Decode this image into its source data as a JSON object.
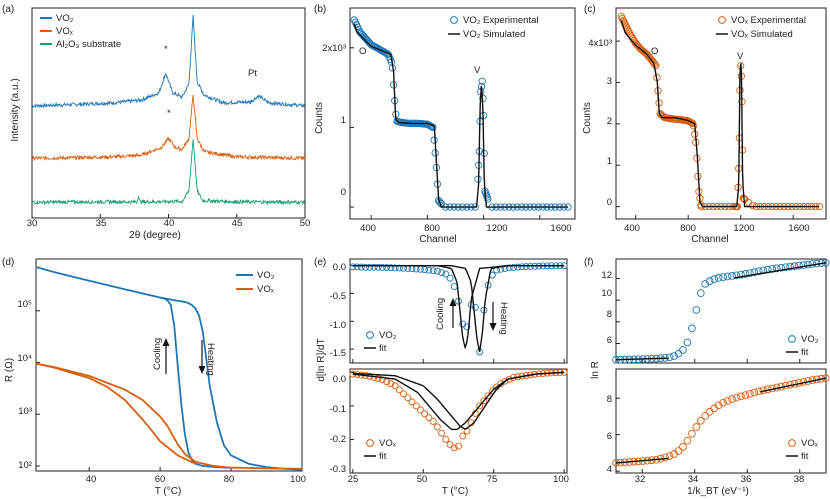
{
  "colors": {
    "vo2": "#1f77b4",
    "vox": "#d95f0e",
    "al2o3": "#1b9e77",
    "fit": "#111111"
  },
  "chart_data": [
    {
      "id": "a",
      "panel_label": "(a)",
      "type": "line",
      "title": "",
      "xlabel": "2θ (degree)",
      "ylabel": "Intensity (a.u.)",
      "xlim": [
        30,
        50
      ],
      "xticks": [
        "30",
        "35",
        "40",
        "45",
        "50"
      ],
      "series": [
        {
          "name": "VO2",
          "label": "VO₂",
          "color_key": "vo2",
          "offset": 2.0,
          "x": [
            30,
            33,
            36,
            38,
            39.3,
            39.8,
            40.3,
            41,
            41.5,
            41.8,
            42.1,
            42.6,
            44,
            46,
            46.6,
            47.3,
            50
          ],
          "y": [
            0.25,
            0.28,
            0.32,
            0.38,
            0.55,
            1.0,
            0.55,
            0.45,
            0.75,
            2.3,
            0.8,
            0.5,
            0.32,
            0.34,
            0.48,
            0.32,
            0.25
          ]
        },
        {
          "name": "VOx",
          "label": "VOₓ",
          "color_key": "vox",
          "offset": 1.0,
          "x": [
            30,
            33,
            36,
            38,
            39.5,
            40.0,
            40.5,
            41,
            41.5,
            41.8,
            42.1,
            42.6,
            45,
            50
          ],
          "y": [
            0.05,
            0.06,
            0.08,
            0.12,
            0.3,
            0.5,
            0.3,
            0.25,
            0.5,
            1.5,
            0.5,
            0.2,
            0.08,
            0.05
          ]
        },
        {
          "name": "Al2O3 substrate",
          "label": "Al₂O₃ substrate",
          "color_key": "al2o3",
          "offset": 0.0,
          "x": [
            30,
            35,
            37.7,
            37.8,
            37.9,
            41,
            41.5,
            41.8,
            42.1,
            42.5,
            45,
            50
          ],
          "y": [
            0.04,
            0.05,
            0.05,
            0.2,
            0.05,
            0.06,
            0.3,
            1.5,
            0.3,
            0.08,
            0.05,
            0.04
          ]
        }
      ],
      "annotations": [
        "*",
        "*",
        "Pt"
      ]
    },
    {
      "id": "b",
      "panel_label": "(b)",
      "type": "scatter",
      "title": "",
      "xlabel": "Channel",
      "ylabel": "Counts",
      "xlim": [
        250,
        1850
      ],
      "ylim": [
        -150,
        2500
      ],
      "xticks": [
        "400",
        "800",
        "1200",
        "1600"
      ],
      "yticks": [
        "0",
        "1",
        "2x10³"
      ],
      "legend": [
        "VO₂ Experimental",
        "VO₂ Simulated"
      ],
      "annotations": [
        "O",
        "V"
      ],
      "series": [
        {
          "name": "VO2 Simulated",
          "color_key": "fit",
          "x": [
            280,
            300,
            400,
            480,
            540,
            560,
            575,
            600,
            700,
            800,
            850,
            860,
            880,
            900,
            1000,
            1100,
            1150,
            1165,
            1175,
            1185,
            1195,
            1205,
            1220,
            1300,
            1500,
            1800
          ],
          "y": [
            2300,
            2200,
            2020,
            1960,
            1920,
            1700,
            1100,
            1060,
            1050,
            1050,
            1020,
            700,
            100,
            0,
            0,
            0,
            0,
            300,
            1250,
            1550,
            1250,
            300,
            0,
            0,
            0,
            0
          ]
        },
        {
          "name": "VO2 Experimental",
          "color_key": "vo2",
          "x": [
            280,
            320,
            360,
            400,
            440,
            480,
            520,
            550,
            565,
            580,
            620,
            680,
            740,
            800,
            840,
            860,
            880,
            920,
            1000,
            1100,
            1150,
            1170,
            1180,
            1190,
            1200,
            1210,
            1250,
            1400,
            1600,
            1800
          ],
          "y": [
            2350,
            2200,
            2120,
            2040,
            2000,
            1960,
            1920,
            1800,
            1400,
            1080,
            1060,
            1050,
            1050,
            1040,
            1000,
            600,
            80,
            0,
            0,
            0,
            0,
            700,
            1450,
            1580,
            1150,
            200,
            0,
            0,
            0,
            0
          ]
        }
      ]
    },
    {
      "id": "c",
      "panel_label": "(c)",
      "type": "scatter",
      "title": "",
      "xlabel": "Channel",
      "ylabel": "Counts",
      "xlim": [
        250,
        1850
      ],
      "ylim": [
        -300,
        4800
      ],
      "xticks": [
        "400",
        "800",
        "1200",
        "1600"
      ],
      "yticks": [
        "0",
        "1",
        "2",
        "3",
        "4x10³"
      ],
      "legend": [
        "VOₓ Experimental",
        "VOₓ Simulated"
      ],
      "annotations": [
        "O",
        "V"
      ],
      "series": [
        {
          "name": "VOx Simulated",
          "color_key": "fit",
          "x": [
            290,
            320,
            400,
            480,
            540,
            565,
            580,
            600,
            700,
            800,
            850,
            870,
            890,
            910,
            1000,
            1100,
            1170,
            1185,
            1195,
            1205,
            1215,
            1230,
            1300,
            1500,
            1800
          ],
          "y": [
            4500,
            4200,
            3900,
            3700,
            3450,
            3000,
            2250,
            2150,
            2150,
            2080,
            2000,
            1200,
            100,
            0,
            0,
            0,
            0,
            500,
            3400,
            3450,
            600,
            0,
            0,
            0,
            0
          ]
        },
        {
          "name": "VOx Experimental",
          "color_key": "vox",
          "x": [
            290,
            320,
            360,
            400,
            440,
            480,
            520,
            555,
            570,
            585,
            620,
            680,
            740,
            800,
            840,
            860,
            880,
            900,
            1000,
            1100,
            1175,
            1188,
            1198,
            1208,
            1220,
            1300,
            1500,
            1800
          ],
          "y": [
            4600,
            4400,
            4150,
            3950,
            3800,
            3700,
            3550,
            3400,
            2800,
            2250,
            2150,
            2120,
            2100,
            2070,
            2000,
            1500,
            400,
            0,
            0,
            0,
            0,
            1200,
            3500,
            3000,
            200,
            0,
            0,
            0
          ]
        }
      ]
    },
    {
      "id": "d",
      "panel_label": "(d)",
      "type": "line",
      "title": "",
      "xlabel": "T (°C)",
      "ylabel": "R (Ω)",
      "xlim": [
        25,
        100
      ],
      "ylim_log": [
        80,
        1000000
      ],
      "xticks": [
        "40",
        "60",
        "80",
        "100"
      ],
      "yticks": [
        "10²",
        "10³",
        "10⁴",
        "10⁵"
      ],
      "legend": [
        "VO₂",
        "VOₓ"
      ],
      "annotations": [
        "Cooling",
        "Heating"
      ],
      "series": [
        {
          "name": "VO2 heating",
          "color_key": "vo2",
          "x": [
            25,
            30,
            40,
            50,
            60,
            65,
            67,
            68,
            69,
            70,
            71,
            72,
            73,
            74,
            76,
            78,
            80,
            85,
            90,
            95,
            100
          ],
          "y": [
            700000,
            560000,
            380000,
            260000,
            180000,
            155000,
            148000,
            140000,
            128000,
            110000,
            80000,
            40000,
            12000,
            3500,
            700,
            250,
            160,
            110,
            95,
            88,
            85
          ]
        },
        {
          "name": "VO2 cooling",
          "color_key": "vo2",
          "x": [
            60,
            61,
            62,
            63,
            64,
            65,
            66,
            67,
            68,
            69,
            70,
            72,
            76,
            80
          ],
          "y": [
            180000,
            175000,
            160000,
            130000,
            50000,
            8000,
            1500,
            400,
            180,
            130,
            110,
            100,
            95,
            92
          ]
        },
        {
          "name": "VOx heating",
          "color_key": "vox",
          "x": [
            25,
            30,
            40,
            50,
            55,
            60,
            62,
            65,
            67,
            70,
            75,
            80,
            90,
            100
          ],
          "y": [
            9500,
            8200,
            5500,
            3000,
            1900,
            900,
            600,
            260,
            170,
            120,
            100,
            93,
            90,
            88
          ]
        },
        {
          "name": "VOx cooling",
          "color_key": "vox",
          "x": [
            25,
            30,
            40,
            45,
            50,
            55,
            58,
            60,
            65,
            70
          ],
          "y": [
            9500,
            8000,
            5000,
            3400,
            1900,
            800,
            450,
            300,
            160,
            110
          ]
        }
      ]
    },
    {
      "id": "e_top",
      "panel_label": "(e)",
      "type": "scatter",
      "title": "",
      "xlabel": "",
      "ylabel": "d[ln R]/dT",
      "xlim": [
        24,
        101
      ],
      "ylim": [
        -1.75,
        0.12
      ],
      "yticks": [
        "0.0",
        "-0.5",
        "-1.0",
        "-1.5"
      ],
      "legend": [
        "VO₂",
        "fit"
      ],
      "annotations": [
        "Cooling",
        "Heating"
      ],
      "series": [
        {
          "name": "VO2 fit cooling",
          "color_key": "fit",
          "x": [
            25,
            55,
            60,
            62,
            63,
            64,
            65,
            66,
            67,
            70,
            80,
            100
          ],
          "y": [
            0,
            0,
            -0.05,
            -0.3,
            -0.8,
            -1.3,
            -1.5,
            -1.2,
            -0.6,
            -0.05,
            0,
            0
          ]
        },
        {
          "name": "VO2 fit heating",
          "color_key": "fit",
          "x": [
            25,
            60,
            65,
            67,
            68,
            69,
            70,
            71,
            72,
            74,
            80,
            100
          ],
          "y": [
            0,
            0,
            -0.05,
            -0.3,
            -0.8,
            -1.3,
            -1.55,
            -1.2,
            -0.6,
            -0.05,
            0,
            0
          ]
        },
        {
          "name": "VO2 data",
          "color_key": "vo2",
          "x": [
            25,
            30,
            35,
            40,
            45,
            50,
            55,
            58,
            60,
            62,
            64,
            65,
            66,
            68,
            69,
            70,
            71,
            72,
            74,
            76,
            80,
            85,
            90,
            95,
            100
          ],
          "y": [
            -0.02,
            -0.03,
            -0.03,
            -0.04,
            -0.05,
            -0.07,
            -0.1,
            -0.15,
            -0.25,
            -0.5,
            -1.05,
            -1.3,
            -0.9,
            -0.5,
            -1.0,
            -1.55,
            -1.1,
            -0.5,
            -0.2,
            -0.08,
            -0.04,
            -0.02,
            -0.01,
            0,
            0
          ]
        }
      ]
    },
    {
      "id": "e_bottom",
      "panel_label": "",
      "type": "scatter",
      "title": "",
      "xlabel": "T (°C)",
      "ylabel": "",
      "xlim": [
        24,
        101
      ],
      "ylim": [
        -0.3,
        0.01
      ],
      "xticks": [
        "25",
        "50",
        "75",
        "100"
      ],
      "yticks": [
        "0.0",
        "-0.1",
        "-0.2",
        "-0.3"
      ],
      "legend": [
        "VOₓ",
        "fit"
      ],
      "series": [
        {
          "name": "VOx fit cooling",
          "color_key": "fit",
          "x": [
            25,
            40,
            48,
            52,
            56,
            60,
            62,
            65,
            70,
            75,
            80,
            90,
            100
          ],
          "y": [
            -0.005,
            -0.02,
            -0.06,
            -0.1,
            -0.14,
            -0.17,
            -0.17,
            -0.15,
            -0.1,
            -0.05,
            -0.02,
            -0.005,
            0
          ]
        },
        {
          "name": "VOx fit heating",
          "color_key": "fit",
          "x": [
            25,
            40,
            50,
            55,
            60,
            63,
            65,
            68,
            72,
            76,
            80,
            90,
            100
          ],
          "y": [
            -0.003,
            -0.01,
            -0.04,
            -0.08,
            -0.13,
            -0.16,
            -0.17,
            -0.15,
            -0.1,
            -0.05,
            -0.02,
            -0.005,
            0
          ]
        },
        {
          "name": "VOx data",
          "color_key": "vox",
          "x": [
            25,
            30,
            35,
            40,
            45,
            50,
            54,
            58,
            60,
            62,
            64,
            66,
            68,
            70,
            72,
            75,
            78,
            82,
            86,
            90,
            95,
            100
          ],
          "y": [
            -0.005,
            -0.01,
            -0.02,
            -0.04,
            -0.08,
            -0.12,
            -0.15,
            -0.2,
            -0.22,
            -0.23,
            -0.19,
            -0.17,
            -0.13,
            -0.1,
            -0.08,
            -0.05,
            -0.03,
            -0.015,
            -0.01,
            -0.005,
            -0.002,
            0
          ]
        }
      ]
    },
    {
      "id": "f_top",
      "panel_label": "(f)",
      "type": "scatter",
      "title": "",
      "xlabel": "",
      "ylabel": "ln R",
      "xlim": [
        31,
        39
      ],
      "ylim": [
        4.2,
        13.8
      ],
      "yticks": [
        "6",
        "8",
        "10",
        "12"
      ],
      "legend": [
        "VO₂",
        "fit"
      ],
      "series": [
        {
          "name": "VO2 fit low",
          "color_key": "fit",
          "x": [
            31,
            33.0
          ],
          "y": [
            4.5,
            4.65
          ]
        },
        {
          "name": "VO2 fit high",
          "color_key": "fit",
          "x": [
            35.5,
            39
          ],
          "y": [
            12.05,
            13.45
          ]
        },
        {
          "name": "VO2 data",
          "color_key": "vo2",
          "x": [
            31,
            31.5,
            32,
            32.5,
            33,
            33.3,
            33.6,
            33.8,
            34.0,
            34.2,
            34.4,
            34.6,
            34.8,
            35.0,
            35.3,
            35.6,
            36,
            36.5,
            37,
            37.5,
            38,
            38.5,
            39
          ],
          "y": [
            4.5,
            4.53,
            4.56,
            4.6,
            4.7,
            4.9,
            5.5,
            6.5,
            8.5,
            10.5,
            11.5,
            11.8,
            12.0,
            12.1,
            12.2,
            12.3,
            12.45,
            12.7,
            12.9,
            13.05,
            13.2,
            13.35,
            13.45
          ]
        }
      ]
    },
    {
      "id": "f_bottom",
      "panel_label": "",
      "type": "scatter",
      "title": "",
      "xlabel": "1/k_BT (eV⁻¹)",
      "ylabel": "",
      "xlim": [
        31,
        39
      ],
      "ylim": [
        3.9,
        9.6
      ],
      "xticks": [
        "32",
        "34",
        "36",
        "38"
      ],
      "yticks": [
        "4",
        "6",
        "8"
      ],
      "legend": [
        "VOₓ",
        "fit"
      ],
      "series": [
        {
          "name": "VOx fit low",
          "color_key": "fit",
          "x": [
            31,
            33.0
          ],
          "y": [
            4.45,
            4.7
          ]
        },
        {
          "name": "VOx fit high",
          "color_key": "fit",
          "x": [
            36.5,
            39
          ],
          "y": [
            8.35,
            9.1
          ]
        },
        {
          "name": "VOx data",
          "color_key": "vox",
          "x": [
            31,
            31.5,
            32,
            32.5,
            33,
            33.3,
            33.6,
            34.0,
            34.3,
            34.6,
            35.0,
            35.5,
            36,
            36.5,
            37,
            37.5,
            38,
            38.5,
            39
          ],
          "y": [
            4.45,
            4.5,
            4.55,
            4.62,
            4.8,
            5.0,
            5.4,
            6.3,
            6.9,
            7.3,
            7.7,
            8.0,
            8.2,
            8.4,
            8.55,
            8.7,
            8.85,
            9.0,
            9.1
          ]
        }
      ]
    }
  ]
}
